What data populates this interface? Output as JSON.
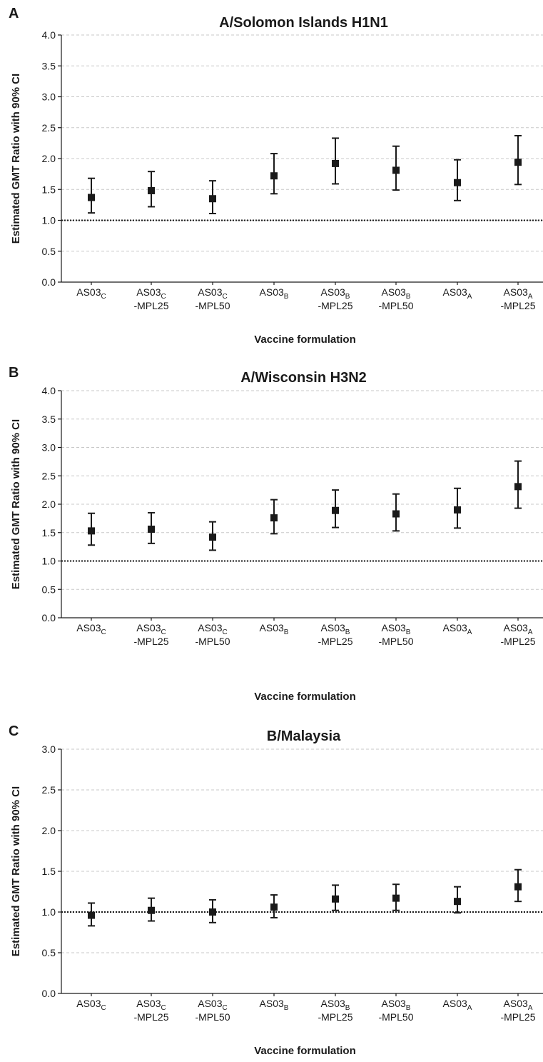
{
  "chart_data": [
    {
      "type": "scatter",
      "panel_label": "A",
      "title": "A/Solomon Islands H1N1",
      "xlabel": "Vaccine formulation",
      "ylabel": "Estimated GMT Ratio with 90% CI",
      "ylim": [
        0,
        4
      ],
      "yticks": [
        "0.0",
        "0.5",
        "1.0",
        "1.5",
        "2.0",
        "2.5",
        "3.0",
        "3.5",
        "4.0"
      ],
      "grid": true,
      "reference_line": 1.0,
      "categories": [
        {
          "base": "AS03",
          "sub": "C",
          "suffix": ""
        },
        {
          "base": "AS03",
          "sub": "C",
          "suffix": "-MPL25"
        },
        {
          "base": "AS03",
          "sub": "C",
          "suffix": "-MPL50"
        },
        {
          "base": "AS03",
          "sub": "B",
          "suffix": ""
        },
        {
          "base": "AS03",
          "sub": "B",
          "suffix": "-MPL25"
        },
        {
          "base": "AS03",
          "sub": "B",
          "suffix": "-MPL50"
        },
        {
          "base": "AS03",
          "sub": "A",
          "suffix": ""
        },
        {
          "base": "AS03",
          "sub": "A",
          "suffix": "-MPL25"
        }
      ],
      "values": [
        1.37,
        1.48,
        1.35,
        1.72,
        1.92,
        1.81,
        1.61,
        1.94
      ],
      "ci_lower": [
        1.12,
        1.22,
        1.11,
        1.43,
        1.59,
        1.49,
        1.32,
        1.58
      ],
      "ci_upper": [
        1.68,
        1.79,
        1.64,
        2.08,
        2.33,
        2.2,
        1.98,
        2.37
      ]
    },
    {
      "type": "scatter",
      "panel_label": "B",
      "title": "A/Wisconsin H3N2",
      "xlabel": "Vaccine formulation",
      "ylabel": "Estimated GMT Ratio with 90% CI",
      "ylim": [
        0,
        4
      ],
      "yticks": [
        "0.0",
        "0.5",
        "1.0",
        "1.5",
        "2.0",
        "2.5",
        "3.0",
        "3.5",
        "4.0"
      ],
      "grid": true,
      "reference_line": 1.0,
      "categories": [
        {
          "base": "AS03",
          "sub": "C",
          "suffix": ""
        },
        {
          "base": "AS03",
          "sub": "C",
          "suffix": "-MPL25"
        },
        {
          "base": "AS03",
          "sub": "C",
          "suffix": "-MPL50"
        },
        {
          "base": "AS03",
          "sub": "B",
          "suffix": ""
        },
        {
          "base": "AS03",
          "sub": "B",
          "suffix": "-MPL25"
        },
        {
          "base": "AS03",
          "sub": "B",
          "suffix": "-MPL50"
        },
        {
          "base": "AS03",
          "sub": "A",
          "suffix": ""
        },
        {
          "base": "AS03",
          "sub": "A",
          "suffix": "-MPL25"
        }
      ],
      "values": [
        1.53,
        1.56,
        1.42,
        1.76,
        1.89,
        1.83,
        1.9,
        2.31
      ],
      "ci_lower": [
        1.28,
        1.31,
        1.19,
        1.48,
        1.59,
        1.53,
        1.58,
        1.93
      ],
      "ci_upper": [
        1.84,
        1.85,
        1.69,
        2.08,
        2.25,
        2.18,
        2.28,
        2.76
      ]
    },
    {
      "type": "scatter",
      "panel_label": "C",
      "title": "B/Malaysia",
      "xlabel": "Vaccine formulation",
      "ylabel": "Estimated GMT Ratio with 90% CI",
      "ylim": [
        0,
        3
      ],
      "yticks": [
        "0.0",
        "0.5",
        "1.0",
        "1.5",
        "2.0",
        "2.5",
        "3.0"
      ],
      "grid": true,
      "reference_line": 1.0,
      "categories": [
        {
          "base": "AS03",
          "sub": "C",
          "suffix": ""
        },
        {
          "base": "AS03",
          "sub": "C",
          "suffix": "-MPL25"
        },
        {
          "base": "AS03",
          "sub": "C",
          "suffix": "-MPL50"
        },
        {
          "base": "AS03",
          "sub": "B",
          "suffix": ""
        },
        {
          "base": "AS03",
          "sub": "B",
          "suffix": "-MPL25"
        },
        {
          "base": "AS03",
          "sub": "B",
          "suffix": "-MPL50"
        },
        {
          "base": "AS03",
          "sub": "A",
          "suffix": ""
        },
        {
          "base": "AS03",
          "sub": "A",
          "suffix": "-MPL25"
        }
      ],
      "values": [
        0.96,
        1.02,
        1.0,
        1.06,
        1.16,
        1.17,
        1.13,
        1.31
      ],
      "ci_lower": [
        0.83,
        0.89,
        0.87,
        0.93,
        1.02,
        1.02,
        0.99,
        1.13
      ],
      "ci_upper": [
        1.11,
        1.17,
        1.15,
        1.21,
        1.33,
        1.34,
        1.31,
        1.52
      ]
    }
  ]
}
